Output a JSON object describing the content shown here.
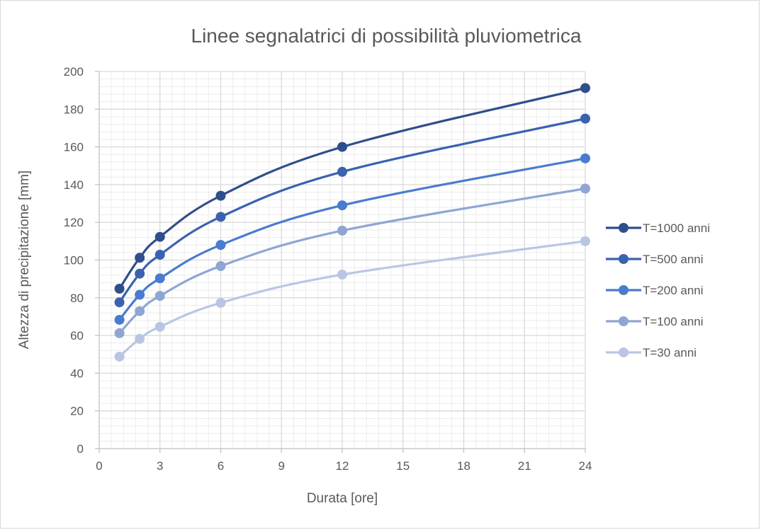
{
  "chart_data": {
    "type": "line",
    "title": "Linee segnalatrici di possibilità pluviometrica",
    "xlabel": "Durata [ore]",
    "ylabel": "Altezza di precipitazione [mm]",
    "x": [
      1,
      2,
      3,
      6,
      12,
      24
    ],
    "xlim": [
      0,
      24
    ],
    "ylim": [
      0,
      200
    ],
    "x_ticks": [
      0,
      3,
      6,
      9,
      12,
      15,
      18,
      21,
      24
    ],
    "y_ticks": [
      0,
      20,
      40,
      60,
      80,
      100,
      120,
      140,
      160,
      180,
      200
    ],
    "grid": true,
    "legend_position": "right",
    "series": [
      {
        "name": "T=1000 anni",
        "color": "#2f4e8c",
        "values": [
          84.8,
          101.2,
          112.3,
          134.1,
          160.0,
          191.2
        ]
      },
      {
        "name": "T=500 anni",
        "color": "#3a62b0",
        "values": [
          77.6,
          92.8,
          102.8,
          122.9,
          146.8,
          175.0
        ]
      },
      {
        "name": "T=200 anni",
        "color": "#4a7bd0",
        "values": [
          68.3,
          81.6,
          90.3,
          108.0,
          129.0,
          153.9
        ]
      },
      {
        "name": "T=100 anni",
        "color": "#8fa5d3",
        "values": [
          61.2,
          72.9,
          81.0,
          96.8,
          115.6,
          137.9
        ]
      },
      {
        "name": "T=30 anni",
        "color": "#b9c6e3",
        "values": [
          48.8,
          58.2,
          64.6,
          77.3,
          92.3,
          110.0
        ]
      }
    ]
  }
}
